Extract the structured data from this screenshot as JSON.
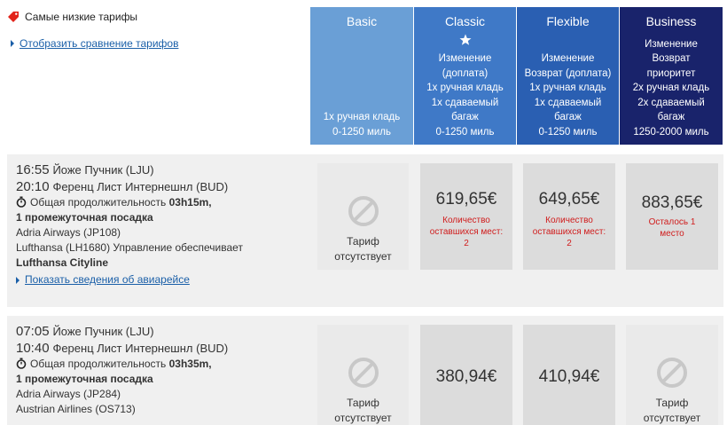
{
  "promo": {
    "label": "Самые низкие тарифы",
    "icon": "price-tag-icon",
    "color": "#e2231a"
  },
  "compare_link": "Отобразить сравнение тарифов",
  "fares": [
    {
      "name": "Basic",
      "lines": [
        "1x ручная кладь",
        "0-1250 миль"
      ],
      "star": false,
      "color": "#6a9fd6"
    },
    {
      "name": "Classic",
      "lines": [
        "Изменение",
        "(доплата)",
        "1x ручная кладь",
        "1x сдаваемый",
        "багаж",
        "0-1250 миль"
      ],
      "star": true,
      "color": "#3f79c7"
    },
    {
      "name": "Flexible",
      "lines": [
        "Изменение",
        "Возврат (доплата)",
        "1x ручная кладь",
        "1x сдаваемый",
        "багаж",
        "0-1250 миль"
      ],
      "star": false,
      "color": "#2a5fb2"
    },
    {
      "name": "Business",
      "lines": [
        "Изменение",
        "Возврат",
        "приоритет",
        "2x ручная кладь",
        "2x сдаваемый",
        "багаж",
        "1250-2000 миль"
      ],
      "star": false,
      "color": "#19236b"
    }
  ],
  "flights": [
    {
      "dep_time": "16:55",
      "dep_airport": "Йоже Пучник (LJU)",
      "arr_time": "20:10",
      "arr_airport": "Ференц Лист Интернешнл (BUD)",
      "duration_prefix": "Общая продолжительность ",
      "duration": "03h15m,",
      "stops": "1 промежуточная посадка",
      "segment1": "Adria Airways (JP108)",
      "segment2_prefix": "Lufthansa (LH1680) Управление обеспечивает",
      "segment2_operator": "Lufthansa Cityline",
      "details_link": "Показать сведения об авиарейсе",
      "prices": {
        "basic": {
          "available": false,
          "label": "Тариф отсутствует"
        },
        "classic": {
          "available": true,
          "price": "619,65€",
          "note": "Количество оставшихся мест: 2"
        },
        "flexible": {
          "available": true,
          "price": "649,65€",
          "note": "Количество оставшихся мест: 2"
        },
        "business": {
          "available": true,
          "price": "883,65€",
          "note": "Осталось 1 место"
        }
      }
    },
    {
      "dep_time": "07:05",
      "dep_airport": "Йоже Пучник (LJU)",
      "arr_time": "10:40",
      "arr_airport": "Ференц Лист Интернешнл (BUD)",
      "duration_prefix": "Общая продолжительность ",
      "duration": "03h35m,",
      "stops": "1 промежуточная посадка",
      "segment1": "Adria Airways (JP284)",
      "segment2": "Austrian Airlines (OS713)",
      "prices": {
        "basic": {
          "available": false,
          "label": "Тариф отсутствует"
        },
        "classic": {
          "available": true,
          "price": "380,94€"
        },
        "flexible": {
          "available": true,
          "price": "410,94€"
        },
        "business": {
          "available": false,
          "label": "Тариф отсутствует"
        }
      }
    }
  ]
}
